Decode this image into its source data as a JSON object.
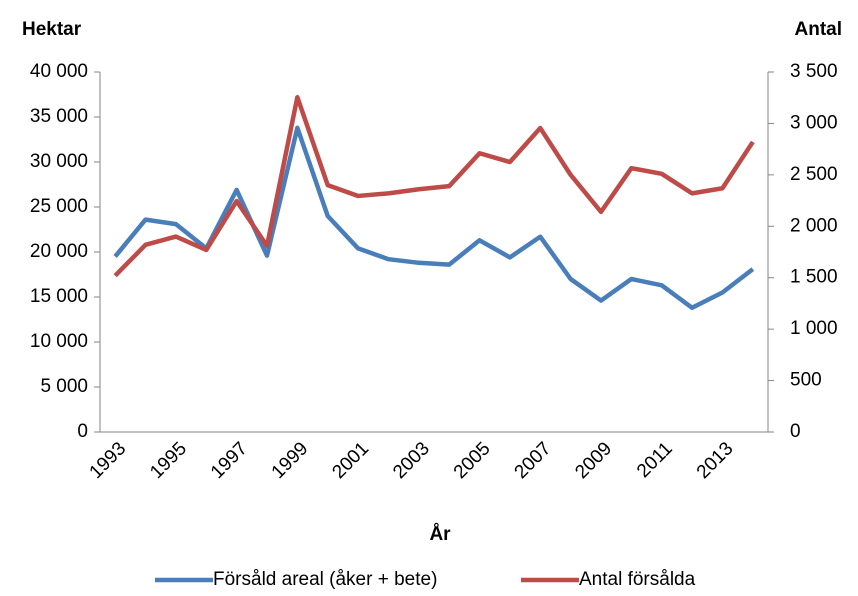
{
  "chart_data": {
    "type": "line",
    "y_label": "Hektar",
    "y2_label": "Antal",
    "x_label": "År",
    "categories": [
      "1993",
      null,
      "1995",
      null,
      "1997",
      null,
      "1999",
      null,
      "2001",
      null,
      "2003",
      null,
      "2005",
      null,
      "2007",
      null,
      "2009",
      null,
      "2011",
      null,
      "2013",
      null
    ],
    "series": [
      {
        "name": "Försåld areal (åker + bete)",
        "color": "#4a7ebb",
        "axis": "y",
        "values": [
          19500,
          23600,
          23100,
          20400,
          26900,
          19600,
          33800,
          24000,
          20400,
          19200,
          18800,
          18600,
          21300,
          19400,
          21700,
          17000,
          14600,
          17000,
          16300,
          13800,
          15500,
          18100
        ]
      },
      {
        "name": "Antal försålda",
        "color": "#be4b48",
        "axis": "y2",
        "values": [
          1520,
          1820,
          1900,
          1770,
          2245,
          1810,
          3255,
          2400,
          2295,
          2320,
          2360,
          2390,
          2710,
          2625,
          2955,
          2500,
          2140,
          2565,
          2510,
          2320,
          2370,
          2820
        ]
      }
    ],
    "ylim": [
      0,
      40000
    ],
    "yticks": [
      0,
      {
        "value": 5000,
        "label": "5 000"
      },
      {
        "value": 10000,
        "label": "10 000"
      },
      {
        "value": 15000,
        "label": "15 000"
      },
      {
        "value": 20000,
        "label": "20 000"
      },
      {
        "value": 25000,
        "label": "25 000"
      },
      {
        "value": 30000,
        "label": "30 000"
      },
      {
        "value": 35000,
        "label": "35 000"
      },
      {
        "value": 40000,
        "label": "40 000"
      }
    ],
    "y2lim": [
      0,
      3500
    ],
    "y2ticks": [
      0,
      500,
      {
        "value": 1000,
        "label": "1 000"
      },
      {
        "value": 1500,
        "label": "1 500"
      },
      {
        "value": 2000,
        "label": "2 000"
      },
      {
        "value": 2500,
        "label": "2 500"
      },
      {
        "value": 3000,
        "label": "3 000"
      },
      {
        "value": 3500,
        "label": "3 500"
      }
    ]
  }
}
